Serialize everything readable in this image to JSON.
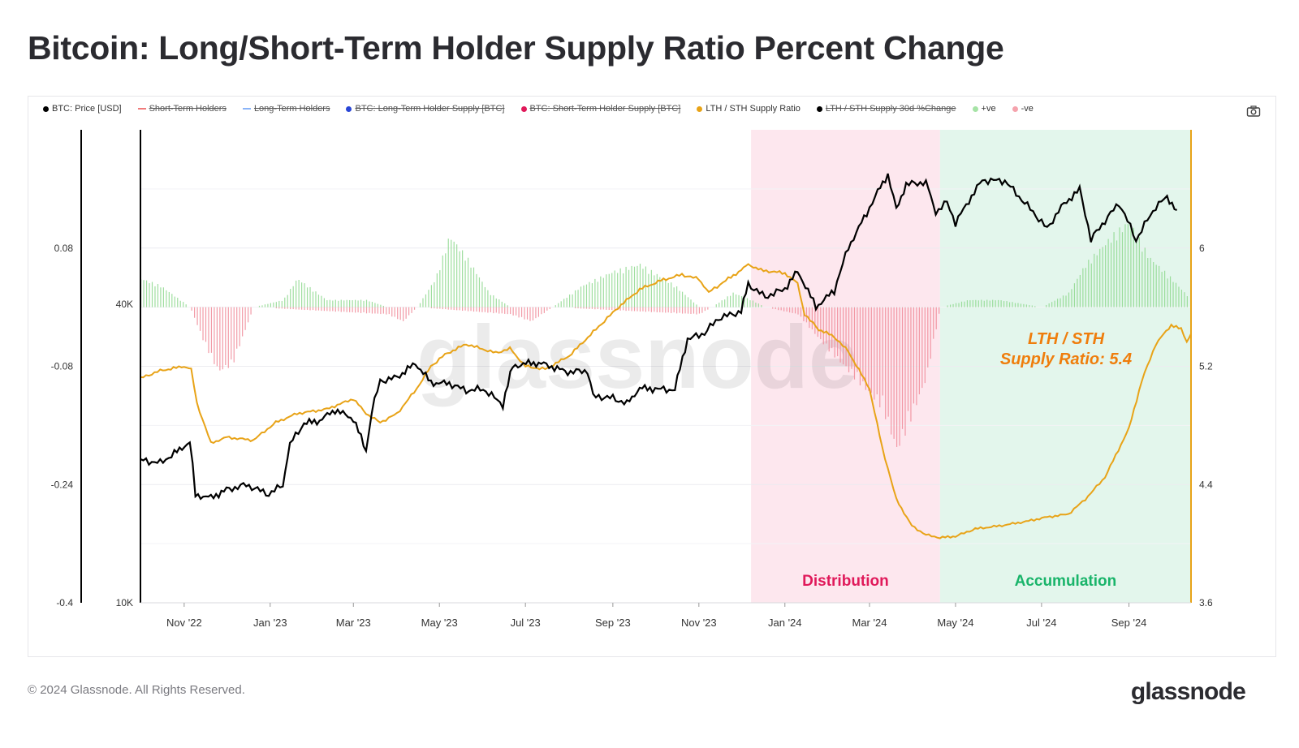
{
  "title": "Bitcoin: Long/Short-Term Holder Supply Ratio Percent Change",
  "footer": "© 2024 Glassnode. All Rights Reserved.",
  "brand": "glassnode",
  "watermark": "glassnode",
  "legend": [
    {
      "label": "BTC: Price [USD]",
      "color": "#000000",
      "marker": "dot",
      "active": true
    },
    {
      "label": "Short-Term Holders",
      "color": "#f07b7b",
      "marker": "line",
      "active": false
    },
    {
      "label": "Long-Term Holders",
      "color": "#8ab4f8",
      "marker": "line",
      "active": false
    },
    {
      "label": "BTC: Long-Term Holder Supply [BTC]",
      "color": "#2946d6",
      "marker": "dot",
      "active": false
    },
    {
      "label": "BTC: Short-Term Holder Supply [BTC]",
      "color": "#e0195a",
      "marker": "dot",
      "active": false
    },
    {
      "label": "LTH / STH Supply Ratio",
      "color": "#e8a317",
      "marker": "dot",
      "active": true
    },
    {
      "label": "LTH / STH Supply 30d %Change",
      "color": "#000000",
      "marker": "dot",
      "active": false
    },
    {
      "label": "+ve",
      "color": "#a6e3a6",
      "marker": "dot",
      "active": true
    },
    {
      "label": "-ve",
      "color": "#f5a3ad",
      "marker": "dot",
      "active": true
    }
  ],
  "icons": {
    "camera": "camera-icon"
  },
  "colors": {
    "price": "#000000",
    "ratio": "#e8a317",
    "pos": "#8ed88e",
    "neg": "#f08a98",
    "distribution_zone": "#fde7ee",
    "accumulation_zone": "#e3f6ec",
    "distribution_text": "#e0195a",
    "accumulation_text": "#19b46a",
    "annotation": "#ef7d0c"
  },
  "chart_data": {
    "type": "line",
    "x_tick_labels": [
      "Nov '22",
      "Jan '23",
      "Mar '23",
      "May '23",
      "Jul '23",
      "Sep '23",
      "Nov '23",
      "Jan '24",
      "Mar '24",
      "May '24",
      "Jul '24",
      "Sep '24"
    ],
    "x_range": [
      "2022-10-01",
      "2024-10-15"
    ],
    "y_axes": {
      "pct_change": {
        "ticks": [
          "0.08",
          "-0.08",
          "-0.24",
          "-0.4"
        ],
        "range": [
          -0.4,
          0.24
        ],
        "position": "far-left"
      },
      "price": {
        "ticks": [
          "40K",
          "10K"
        ],
        "scale": "log",
        "range": [
          10000,
          90000
        ],
        "position": "left"
      },
      "ratio": {
        "ticks": [
          "6",
          "5.2",
          "4.4",
          "3.6"
        ],
        "range": [
          3.6,
          6.8
        ],
        "position": "right"
      }
    },
    "zones": [
      {
        "label": "Distribution",
        "start": "2023-12-08",
        "end": "2024-04-20"
      },
      {
        "label": "Accumulation",
        "start": "2024-04-20",
        "end": "2024-10-15"
      }
    ],
    "annotation": [
      "LTH / STH",
      "Supply Ratio: 5.4"
    ],
    "series": [
      {
        "name": "BTC: Price [USD]",
        "axis": "price",
        "points": [
          [
            "2022-10-01",
            19400
          ],
          [
            "2022-10-15",
            19150
          ],
          [
            "2022-10-25",
            20000
          ],
          [
            "2022-11-05",
            21100
          ],
          [
            "2022-11-09",
            16500
          ],
          [
            "2022-11-20",
            16300
          ],
          [
            "2022-12-01",
            16900
          ],
          [
            "2022-12-15",
            17300
          ],
          [
            "2022-12-31",
            16550
          ],
          [
            "2023-01-10",
            17300
          ],
          [
            "2023-01-15",
            20900
          ],
          [
            "2023-01-25",
            23000
          ],
          [
            "2023-02-05",
            23300
          ],
          [
            "2023-02-16",
            24500
          ],
          [
            "2023-03-01",
            23500
          ],
          [
            "2023-03-10",
            20200
          ],
          [
            "2023-03-14",
            24300
          ],
          [
            "2023-03-20",
            28000
          ],
          [
            "2023-04-01",
            28500
          ],
          [
            "2023-04-14",
            30400
          ],
          [
            "2023-04-25",
            27800
          ],
          [
            "2023-05-08",
            27700
          ],
          [
            "2023-05-20",
            26800
          ],
          [
            "2023-06-01",
            27000
          ],
          [
            "2023-06-15",
            25100
          ],
          [
            "2023-06-22",
            30000
          ],
          [
            "2023-07-05",
            30500
          ],
          [
            "2023-07-14",
            30300
          ],
          [
            "2023-07-31",
            29200
          ],
          [
            "2023-08-14",
            29400
          ],
          [
            "2023-08-18",
            26100
          ],
          [
            "2023-09-01",
            25900
          ],
          [
            "2023-09-11",
            25200
          ],
          [
            "2023-09-20",
            27100
          ],
          [
            "2023-10-01",
            27000
          ],
          [
            "2023-10-15",
            26900
          ],
          [
            "2023-10-24",
            34000
          ],
          [
            "2023-11-05",
            35000
          ],
          [
            "2023-11-15",
            37500
          ],
          [
            "2023-12-01",
            38700
          ],
          [
            "2023-12-06",
            43900
          ],
          [
            "2023-12-18",
            41400
          ],
          [
            "2024-01-01",
            43000
          ],
          [
            "2024-01-10",
            46600
          ],
          [
            "2024-01-23",
            39500
          ],
          [
            "2024-02-05",
            42600
          ],
          [
            "2024-02-15",
            52000
          ],
          [
            "2024-02-28",
            61000
          ],
          [
            "2024-03-05",
            66000
          ],
          [
            "2024-03-14",
            73100
          ],
          [
            "2024-03-20",
            62000
          ],
          [
            "2024-03-27",
            69900
          ],
          [
            "2024-04-10",
            70500
          ],
          [
            "2024-04-17",
            61300
          ],
          [
            "2024-04-25",
            64300
          ],
          [
            "2024-05-01",
            58300
          ],
          [
            "2024-05-20",
            71200
          ],
          [
            "2024-06-05",
            71000
          ],
          [
            "2024-06-15",
            66000
          ],
          [
            "2024-07-05",
            56800
          ],
          [
            "2024-07-15",
            62900
          ],
          [
            "2024-07-28",
            68200
          ],
          [
            "2024-08-05",
            54000
          ],
          [
            "2024-08-25",
            64000
          ],
          [
            "2024-09-06",
            53900
          ],
          [
            "2024-09-20",
            63000
          ],
          [
            "2024-09-28",
            65800
          ],
          [
            "2024-10-05",
            62000
          ]
        ]
      },
      {
        "name": "LTH / STH Supply Ratio",
        "axis": "ratio",
        "points": [
          [
            "2022-10-01",
            5.12
          ],
          [
            "2022-10-15",
            5.17
          ],
          [
            "2022-11-01",
            5.2
          ],
          [
            "2022-11-06",
            5.18
          ],
          [
            "2022-11-10",
            4.95
          ],
          [
            "2022-11-20",
            4.68
          ],
          [
            "2022-12-01",
            4.72
          ],
          [
            "2022-12-20",
            4.7
          ],
          [
            "2023-01-05",
            4.82
          ],
          [
            "2023-01-20",
            4.88
          ],
          [
            "2023-02-10",
            4.91
          ],
          [
            "2023-03-01",
            4.98
          ],
          [
            "2023-03-10",
            4.88
          ],
          [
            "2023-03-20",
            4.82
          ],
          [
            "2023-04-01",
            4.88
          ],
          [
            "2023-04-15",
            5.05
          ],
          [
            "2023-04-25",
            5.2
          ],
          [
            "2023-05-05",
            5.28
          ],
          [
            "2023-05-20",
            5.35
          ],
          [
            "2023-06-10",
            5.29
          ],
          [
            "2023-06-20",
            5.32
          ],
          [
            "2023-07-01",
            5.2
          ],
          [
            "2023-07-15",
            5.18
          ],
          [
            "2023-08-01",
            5.27
          ],
          [
            "2023-08-20",
            5.45
          ],
          [
            "2023-09-05",
            5.6
          ],
          [
            "2023-09-20",
            5.72
          ],
          [
            "2023-10-05",
            5.78
          ],
          [
            "2023-10-20",
            5.82
          ],
          [
            "2023-11-01",
            5.79
          ],
          [
            "2023-11-08",
            5.7
          ],
          [
            "2023-11-20",
            5.78
          ],
          [
            "2023-12-01",
            5.85
          ],
          [
            "2023-12-06",
            5.89
          ],
          [
            "2023-12-15",
            5.85
          ],
          [
            "2024-01-01",
            5.83
          ],
          [
            "2024-01-10",
            5.76
          ],
          [
            "2024-01-15",
            5.55
          ],
          [
            "2024-01-25",
            5.45
          ],
          [
            "2024-02-05",
            5.4
          ],
          [
            "2024-02-15",
            5.3
          ],
          [
            "2024-03-01",
            5.05
          ],
          [
            "2024-03-10",
            4.65
          ],
          [
            "2024-03-20",
            4.3
          ],
          [
            "2024-03-31",
            4.12
          ],
          [
            "2024-04-10",
            4.06
          ],
          [
            "2024-04-20",
            4.04
          ],
          [
            "2024-05-01",
            4.05
          ],
          [
            "2024-05-15",
            4.1
          ],
          [
            "2024-06-01",
            4.12
          ],
          [
            "2024-06-20",
            4.15
          ],
          [
            "2024-07-05",
            4.18
          ],
          [
            "2024-07-20",
            4.2
          ],
          [
            "2024-08-01",
            4.3
          ],
          [
            "2024-08-15",
            4.45
          ],
          [
            "2024-09-01",
            4.78
          ],
          [
            "2024-09-10",
            5.1
          ],
          [
            "2024-09-20",
            5.35
          ],
          [
            "2024-10-01",
            5.48
          ],
          [
            "2024-10-08",
            5.45
          ],
          [
            "2024-10-12",
            5.37
          ],
          [
            "2024-10-15",
            5.42
          ]
        ]
      },
      {
        "name": "+ve",
        "axis": "pct_change",
        "type": "bar",
        "points": [
          [
            "2022-10-01",
            0.04
          ],
          [
            "2022-10-15",
            0.03
          ],
          [
            "2022-11-05",
            0.0
          ],
          [
            "2022-12-20",
            0.0
          ],
          [
            "2023-01-10",
            0.01
          ],
          [
            "2023-01-20",
            0.04
          ],
          [
            "2023-02-10",
            0.01
          ],
          [
            "2023-03-10",
            0.01
          ],
          [
            "2023-03-25",
            0.0
          ],
          [
            "2023-04-15",
            0.0
          ],
          [
            "2023-04-28",
            0.04
          ],
          [
            "2023-05-08",
            0.1
          ],
          [
            "2023-05-20",
            0.07
          ],
          [
            "2023-06-05",
            0.02
          ],
          [
            "2023-06-20",
            0.0
          ],
          [
            "2023-07-20",
            0.0
          ],
          [
            "2023-08-10",
            0.03
          ],
          [
            "2023-09-01",
            0.05
          ],
          [
            "2023-09-20",
            0.06
          ],
          [
            "2023-10-15",
            0.03
          ],
          [
            "2023-11-01",
            0.0
          ],
          [
            "2023-11-10",
            0.0
          ],
          [
            "2023-11-25",
            0.02
          ],
          [
            "2023-12-08",
            0.01
          ],
          [
            "2023-12-18",
            0.0
          ],
          [
            "2024-04-20",
            0.0
          ],
          [
            "2024-05-10",
            0.01
          ],
          [
            "2024-06-01",
            0.01
          ],
          [
            "2024-07-01",
            0.0
          ],
          [
            "2024-07-20",
            0.02
          ],
          [
            "2024-08-01",
            0.06
          ],
          [
            "2024-08-20",
            0.1
          ],
          [
            "2024-09-01",
            0.12
          ],
          [
            "2024-09-15",
            0.07
          ],
          [
            "2024-10-01",
            0.04
          ],
          [
            "2024-10-15",
            0.01
          ]
        ]
      },
      {
        "name": "-ve",
        "axis": "pct_change",
        "type": "bar",
        "points": [
          [
            "2022-11-05",
            0.0
          ],
          [
            "2022-11-15",
            -0.05
          ],
          [
            "2022-11-25",
            -0.09
          ],
          [
            "2022-12-05",
            -0.08
          ],
          [
            "2022-12-20",
            0.0
          ],
          [
            "2023-03-25",
            -0.01
          ],
          [
            "2023-04-05",
            -0.02
          ],
          [
            "2023-04-15",
            0.0
          ],
          [
            "2023-06-20",
            -0.01
          ],
          [
            "2023-07-05",
            -0.02
          ],
          [
            "2023-07-20",
            0.0
          ],
          [
            "2023-11-01",
            -0.01
          ],
          [
            "2023-11-10",
            0.0
          ],
          [
            "2023-12-18",
            0.0
          ],
          [
            "2024-01-10",
            -0.01
          ],
          [
            "2024-02-01",
            -0.06
          ],
          [
            "2024-02-20",
            -0.1
          ],
          [
            "2024-03-10",
            -0.14
          ],
          [
            "2024-03-20",
            -0.2
          ],
          [
            "2024-03-27",
            -0.17
          ],
          [
            "2024-04-10",
            -0.1
          ],
          [
            "2024-04-20",
            0.0
          ]
        ]
      }
    ]
  }
}
